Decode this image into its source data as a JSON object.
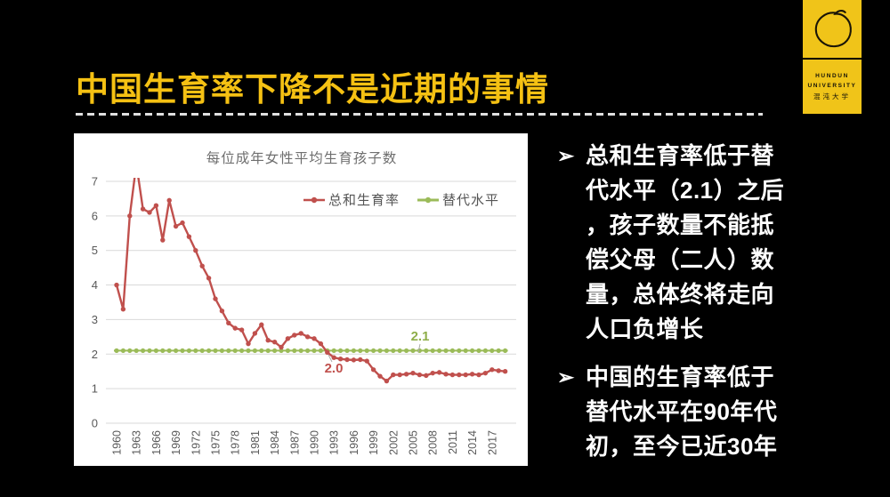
{
  "slide": {
    "title": "中国生育率下降不是近期的事情",
    "bullets": [
      {
        "marker": "➢",
        "lines": [
          "总和生育率低于替",
          "代水平（2.1）之后",
          "，孩子数量不能抵",
          "偿父母（二人）数",
          "量，总体终将走向",
          "人口负增长"
        ]
      },
      {
        "marker": "➢",
        "lines": [
          "中国的生育率低于",
          "替代水平在90年代",
          "初，至今已近30年"
        ]
      }
    ]
  },
  "logo": {
    "icon": "hand-drawn-circle",
    "line1": "HUNDUN",
    "line2": "UNIVERSITY",
    "line3": "混沌大学",
    "background": "#F0C419"
  },
  "chart_data": {
    "type": "line",
    "title": "每位成年女性平均生育孩子数",
    "x_start_year": 1960,
    "x_tick_labels": [
      "1960",
      "1963",
      "1966",
      "1969",
      "1972",
      "1975",
      "1978",
      "1981",
      "1984",
      "1987",
      "1990",
      "1993",
      "1996",
      "1999",
      "2002",
      "2005",
      "2008",
      "2011",
      "2014",
      "2017"
    ],
    "yticks": [
      0,
      1,
      2,
      3,
      4,
      5,
      6,
      7
    ],
    "ylim": [
      0,
      7
    ],
    "grid": true,
    "legend_position": "top-right",
    "series": [
      {
        "name": "总和生育率",
        "color": "#C0504D",
        "values": [
          4.0,
          3.3,
          6.0,
          7.5,
          6.2,
          6.1,
          6.3,
          5.3,
          6.45,
          5.7,
          5.8,
          5.4,
          5.0,
          4.55,
          4.2,
          3.6,
          3.25,
          2.9,
          2.75,
          2.7,
          2.3,
          2.6,
          2.85,
          2.4,
          2.35,
          2.2,
          2.45,
          2.55,
          2.6,
          2.5,
          2.45,
          2.3,
          2.05,
          1.9,
          1.86,
          1.84,
          1.83,
          1.84,
          1.8,
          1.55,
          1.36,
          1.22,
          1.4,
          1.4,
          1.42,
          1.45,
          1.4,
          1.38,
          1.45,
          1.47,
          1.42,
          1.4,
          1.4,
          1.4,
          1.42,
          1.4,
          1.45,
          1.55,
          1.52,
          1.5
        ]
      },
      {
        "name": "替代水平",
        "color": "#9BBB59",
        "constant_value": 2.1
      }
    ],
    "annotations": [
      {
        "text": "2.1",
        "color": "#8FAE4A",
        "target": "replacement-line"
      },
      {
        "text": "2.0",
        "color": "#C0504D",
        "target": "crossing-point-1992"
      }
    ],
    "style": {
      "grid_color": "#D9D9D9",
      "axis_text_color": "#595959",
      "title_color": "#6F6F6F",
      "legend_text_color": "#555555",
      "leader_line_color": "#ABABAB",
      "panel_background": "#FFFFFF"
    }
  }
}
